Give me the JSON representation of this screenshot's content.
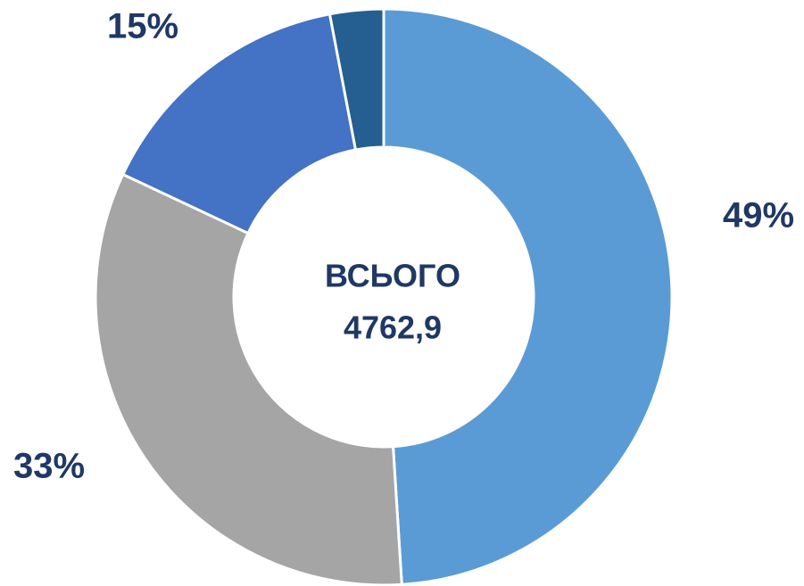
{
  "chart_data": {
    "type": "pie",
    "categories": [
      null,
      null,
      null,
      null
    ],
    "values": [
      49,
      33,
      15,
      3
    ],
    "value_labels": [
      "49%",
      "33%",
      "15%",
      null
    ],
    "colors": [
      "#5b9bd5",
      "#a5a5a5",
      "#4472c4",
      "#255e91"
    ],
    "donut": true,
    "center_title": "ВСЬОГО",
    "center_value": "4762,9"
  }
}
